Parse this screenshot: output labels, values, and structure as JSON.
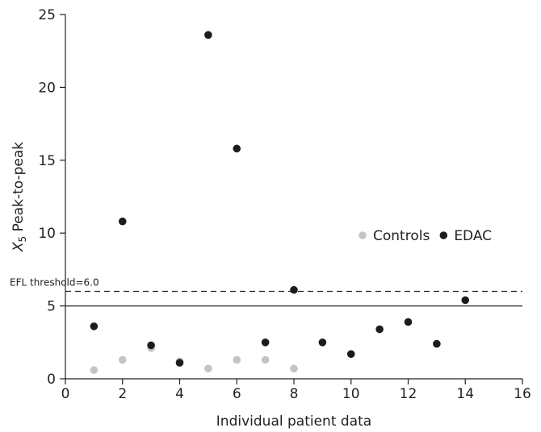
{
  "chart_data": {
    "type": "scatter",
    "title": "",
    "xlabel": "Individual patient data",
    "ylabel_sym": "X",
    "ylabel_sub": "5",
    "ylabel_rest": " Peak-to-peak",
    "xlim": [
      0,
      16
    ],
    "ylim": [
      0,
      25
    ],
    "xticks": [
      0,
      2,
      4,
      6,
      8,
      10,
      12,
      14,
      16
    ],
    "yticks": [
      0,
      5,
      10,
      15,
      20,
      25
    ],
    "grid": false,
    "legend_position": "center-right",
    "series": [
      {
        "name": "Controls",
        "color": "#c4c4c4",
        "points": [
          {
            "x": 1,
            "y": 0.6
          },
          {
            "x": 2,
            "y": 1.3
          },
          {
            "x": 3,
            "y": 2.1
          },
          {
            "x": 4,
            "y": 1.2
          },
          {
            "x": 5,
            "y": 0.7
          },
          {
            "x": 6,
            "y": 1.3
          },
          {
            "x": 7,
            "y": 1.3
          },
          {
            "x": 8,
            "y": 0.7
          }
        ]
      },
      {
        "name": "EDAC",
        "color": "#1c1c1c",
        "points": [
          {
            "x": 1,
            "y": 3.6
          },
          {
            "x": 2,
            "y": 10.8
          },
          {
            "x": 3,
            "y": 2.3
          },
          {
            "x": 4,
            "y": 1.1
          },
          {
            "x": 5,
            "y": 23.6
          },
          {
            "x": 6,
            "y": 15.8
          },
          {
            "x": 7,
            "y": 2.5
          },
          {
            "x": 8,
            "y": 6.1
          },
          {
            "x": 9,
            "y": 2.5
          },
          {
            "x": 10,
            "y": 1.7
          },
          {
            "x": 11,
            "y": 3.4
          },
          {
            "x": 12,
            "y": 3.9
          },
          {
            "x": 13,
            "y": 2.4
          },
          {
            "x": 14,
            "y": 5.4
          }
        ]
      }
    ],
    "reference_lines": [
      {
        "y": 6.0,
        "style": "dashed",
        "label": "EFL threshold=6.0"
      },
      {
        "y": 5.0,
        "style": "solid",
        "label": ""
      }
    ]
  }
}
